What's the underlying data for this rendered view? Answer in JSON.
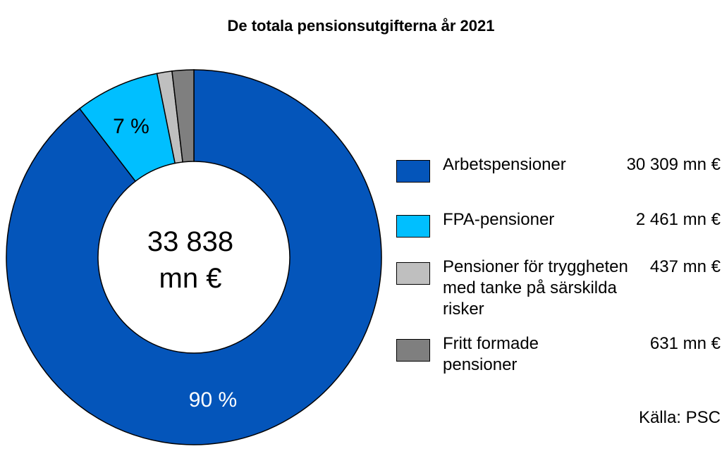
{
  "chart_data": {
    "type": "pie",
    "donut": true,
    "title": "De totala pensionsutgifterna år 2021",
    "center_label": [
      "33 838",
      "mn €"
    ],
    "slices": [
      {
        "label": "Arbetspensioner",
        "value": 30309,
        "value_label": "30 309 mn €",
        "percent_label": "90 %",
        "color": "#0455BA"
      },
      {
        "label": "FPA-pensioner",
        "value": 2461,
        "value_label": "2 461 mn €",
        "percent_label": "7 %",
        "color": "#00BFFF"
      },
      {
        "label": "Pensioner för tryggheten med tanke på särskilda risker",
        "value": 437,
        "value_label": "437 mn €",
        "percent_label": "",
        "color": "#BFBFBF"
      },
      {
        "label": "Fritt formade pensioner",
        "value": 631,
        "value_label": "631 mn €",
        "percent_label": "",
        "color": "#7F7F7F"
      }
    ],
    "legend_position": "right",
    "source": "Källa: PSC"
  }
}
